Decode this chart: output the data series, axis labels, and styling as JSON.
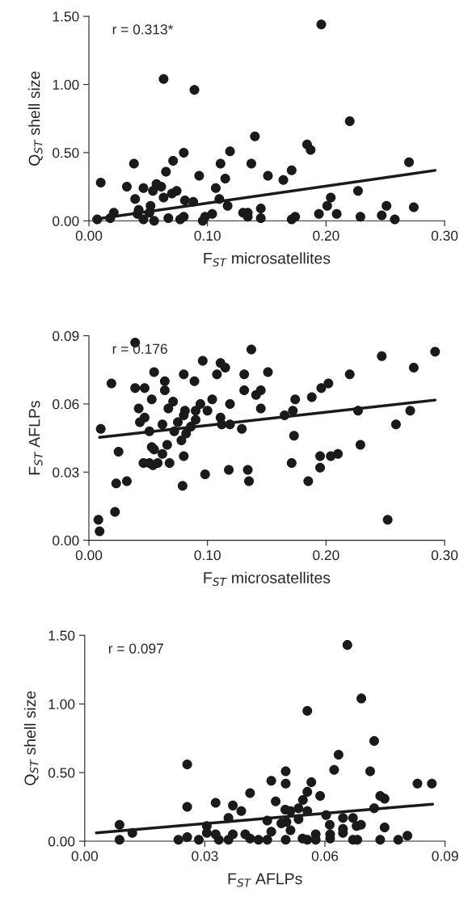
{
  "chart_data": [
    {
      "type": "scatter",
      "xlabel": "F$_{ST}$ microsatellites",
      "ylabel": "Q$_{ST}$ shell size",
      "annotations": [
        "r = 0.313*"
      ],
      "grid": false,
      "xlim": [
        0,
        0.3
      ],
      "ylim": [
        0,
        1.5
      ],
      "xticks": [
        {
          "value": 0,
          "label": "0.00"
        },
        {
          "value": 0.1,
          "label": "0.10"
        },
        {
          "value": 0.2,
          "label": "0.20"
        },
        {
          "value": 0.3,
          "label": "0.30"
        }
      ],
      "yticks": [
        {
          "value": 0,
          "label": "0.00"
        },
        {
          "value": 0.5,
          "label": "0.50"
        },
        {
          "value": 1.0,
          "label": "1.00"
        },
        {
          "value": 1.5,
          "label": "1.50"
        }
      ],
      "series": [
        {
          "marker": "circle",
          "color": "#1a1a1a",
          "x": [
            0.007,
            0.01,
            0.018,
            0.021,
            0.032,
            0.038,
            0.039,
            0.042,
            0.041,
            0.046,
            0.046,
            0.052,
            0.051,
            0.054,
            0.055,
            0.057,
            0.061,
            0.063,
            0.063,
            0.065,
            0.067,
            0.07,
            0.071,
            0.074,
            0.077,
            0.08,
            0.08,
            0.081,
            0.088,
            0.089,
            0.093,
            0.096,
            0.098,
            0.104,
            0.107,
            0.11,
            0.111,
            0.115,
            0.117,
            0.119,
            0.13,
            0.134,
            0.134,
            0.137,
            0.14,
            0.145,
            0.145,
            0.151,
            0.164,
            0.171,
            0.171,
            0.174,
            0.184,
            0.187,
            0.194,
            0.196,
            0.201,
            0.204,
            0.209,
            0.22,
            0.227,
            0.229,
            0.247,
            0.251,
            0.258,
            0.27,
            0.274
          ],
          "values": [
            0.01,
            0.28,
            0.02,
            0.06,
            0.25,
            0.42,
            0.16,
            0.08,
            0.05,
            0.24,
            0.01,
            0.11,
            0.06,
            0.22,
            0.0,
            0.27,
            0.25,
            0.17,
            1.04,
            0.36,
            0.02,
            0.2,
            0.44,
            0.22,
            0.01,
            0.03,
            0.5,
            0.15,
            0.14,
            0.96,
            0.33,
            0.0,
            0.03,
            0.05,
            0.24,
            0.16,
            0.42,
            0.31,
            0.11,
            0.51,
            0.06,
            0.06,
            0.03,
            0.42,
            0.62,
            0.09,
            0.02,
            0.33,
            0.3,
            0.37,
            0.01,
            0.03,
            0.56,
            0.52,
            0.05,
            1.44,
            0.11,
            0.17,
            0.05,
            0.73,
            0.22,
            0.03,
            0.04,
            0.11,
            0.01,
            0.43,
            0.1
          ]
        },
        {
          "type": "line",
          "color": "#1a1a1a",
          "x": [
            0.004,
            0.292
          ],
          "values": [
            0.01,
            0.37
          ]
        }
      ]
    },
    {
      "type": "scatter",
      "xlabel": "F$_{ST}$ microsatellites",
      "ylabel": "F$_{ST}$ AFLPs",
      "annotations": [
        "r = 0.176"
      ],
      "grid": false,
      "xlim": [
        0,
        0.3
      ],
      "ylim": [
        0,
        0.09
      ],
      "xticks": [
        {
          "value": 0,
          "label": "0.00"
        },
        {
          "value": 0.1,
          "label": "0.10"
        },
        {
          "value": 0.2,
          "label": "0.20"
        },
        {
          "value": 0.3,
          "label": "0.30"
        }
      ],
      "yticks": [
        {
          "value": 0,
          "label": "0.00"
        },
        {
          "value": 0.03,
          "label": "0.03"
        },
        {
          "value": 0.06,
          "label": "0.06"
        },
        {
          "value": 0.09,
          "label": "0.09"
        }
      ],
      "series": [
        {
          "marker": "circle",
          "color": "#1a1a1a",
          "x": [
            0.008,
            0.009,
            0.01,
            0.019,
            0.022,
            0.023,
            0.025,
            0.032,
            0.039,
            0.039,
            0.042,
            0.043,
            0.047,
            0.047,
            0.046,
            0.051,
            0.051,
            0.053,
            0.053,
            0.054,
            0.055,
            0.055,
            0.058,
            0.062,
            0.062,
            0.064,
            0.064,
            0.066,
            0.067,
            0.068,
            0.071,
            0.072,
            0.075,
            0.078,
            0.079,
            0.08,
            0.08,
            0.08,
            0.081,
            0.082,
            0.086,
            0.089,
            0.09,
            0.09,
            0.094,
            0.096,
            0.098,
            0.1,
            0.104,
            0.108,
            0.111,
            0.111,
            0.112,
            0.115,
            0.118,
            0.119,
            0.119,
            0.129,
            0.131,
            0.131,
            0.134,
            0.135,
            0.137,
            0.141,
            0.145,
            0.145,
            0.151,
            0.165,
            0.171,
            0.172,
            0.173,
            0.174,
            0.185,
            0.188,
            0.195,
            0.195,
            0.196,
            0.202,
            0.204,
            0.21,
            0.22,
            0.227,
            0.229,
            0.247,
            0.252,
            0.259,
            0.271,
            0.274,
            0.292
          ],
          "values": [
            0.009,
            0.004,
            0.049,
            0.069,
            0.0125,
            0.025,
            0.039,
            0.026,
            0.087,
            0.067,
            0.058,
            0.052,
            0.054,
            0.067,
            0.034,
            0.048,
            0.034,
            0.062,
            0.041,
            0.033,
            0.04,
            0.074,
            0.034,
            0.051,
            0.038,
            0.066,
            0.07,
            0.042,
            0.058,
            0.034,
            0.061,
            0.048,
            0.052,
            0.044,
            0.024,
            0.037,
            0.073,
            0.055,
            0.057,
            0.047,
            0.05,
            0.07,
            0.057,
            0.053,
            0.06,
            0.079,
            0.029,
            0.057,
            0.062,
            0.073,
            0.054,
            0.078,
            0.051,
            0.076,
            0.031,
            0.06,
            0.051,
            0.049,
            0.073,
            0.066,
            0.031,
            0.026,
            0.084,
            0.064,
            0.066,
            0.058,
            0.074,
            0.055,
            0.034,
            0.057,
            0.046,
            0.062,
            0.026,
            0.063,
            0.037,
            0.032,
            0.067,
            0.069,
            0.037,
            0.038,
            0.073,
            0.057,
            0.042,
            0.081,
            0.009,
            0.051,
            0.057,
            0.076,
            0.083
          ]
        },
        {
          "type": "line",
          "color": "#1a1a1a",
          "x": [
            0.009,
            0.292
          ],
          "values": [
            0.0453,
            0.0617
          ]
        }
      ]
    },
    {
      "type": "scatter",
      "xlabel": "F$_{ST}$ AFLPs",
      "ylabel": "Q$_{ST}$ shell size",
      "annotations": [
        "r = 0.097"
      ],
      "grid": false,
      "xlim": [
        0,
        0.09
      ],
      "ylim": [
        0,
        1.5
      ],
      "xticks": [
        {
          "value": 0,
          "label": "0.00"
        },
        {
          "value": 0.03,
          "label": "0.03"
        },
        {
          "value": 0.06,
          "label": "0.06"
        },
        {
          "value": 0.09,
          "label": "0.09"
        }
      ],
      "yticks": [
        {
          "value": 0,
          "label": "0.00"
        },
        {
          "value": 0.5,
          "label": "0.50"
        },
        {
          "value": 1.0,
          "label": "1.00"
        },
        {
          "value": 1.5,
          "label": "1.50"
        }
      ],
      "series": [
        {
          "marker": "circle",
          "color": "#1a1a1a",
          "x": [
            0.0656,
            0.0691,
            0.0556,
            0.0723,
            0.0634,
            0.0256,
            0.0623,
            0.0502,
            0.0713,
            0.0466,
            0.0502,
            0.0566,
            0.0831,
            0.0867,
            0.0413,
            0.0556,
            0.0588,
            0.0738,
            0.0749,
            0.0545,
            0.0477,
            0.0327,
            0.037,
            0.0256,
            0.0391,
            0.0501,
            0.0514,
            0.0534,
            0.0556,
            0.0723,
            0.0359,
            0.0603,
            0.0645,
            0.067,
            0.0534,
            0.0456,
            0.0491,
            0.0504,
            0.0087,
            0.0305,
            0.0612,
            0.0679,
            0.069,
            0.0645,
            0.0749,
            0.0119,
            0.0305,
            0.0327,
            0.037,
            0.0466,
            0.0514,
            0.0645,
            0.0401,
            0.0613,
            0.0577,
            0.0806,
            0.0087,
            0.0234,
            0.0256,
            0.0285,
            0.0335,
            0.0359,
            0.0413,
            0.0434,
            0.0456,
            0.0502,
            0.0544,
            0.0556,
            0.0577,
            0.0613,
            0.067,
            0.0681,
            0.0738,
            0.0783
          ],
          "values": [
            1.43,
            1.04,
            0.95,
            0.73,
            0.63,
            0.56,
            0.52,
            0.51,
            0.51,
            0.44,
            0.42,
            0.43,
            0.42,
            0.42,
            0.35,
            0.36,
            0.33,
            0.33,
            0.31,
            0.3,
            0.29,
            0.28,
            0.26,
            0.25,
            0.22,
            0.23,
            0.22,
            0.24,
            0.22,
            0.24,
            0.17,
            0.19,
            0.17,
            0.17,
            0.16,
            0.15,
            0.13,
            0.14,
            0.12,
            0.11,
            0.12,
            0.11,
            0.12,
            0.09,
            0.1,
            0.06,
            0.06,
            0.05,
            0.05,
            0.07,
            0.08,
            0.06,
            0.05,
            0.05,
            0.05,
            0.04,
            0.01,
            0.01,
            0.03,
            0.01,
            0.01,
            0.01,
            0.02,
            0.01,
            0.01,
            0.01,
            0.02,
            0.01,
            0.01,
            0.02,
            0.01,
            0.01,
            0.01,
            0.01
          ]
        },
        {
          "type": "line",
          "color": "#1a1a1a",
          "x": [
            0.0029,
            0.0869
          ],
          "values": [
            0.06,
            0.27
          ]
        }
      ]
    }
  ]
}
